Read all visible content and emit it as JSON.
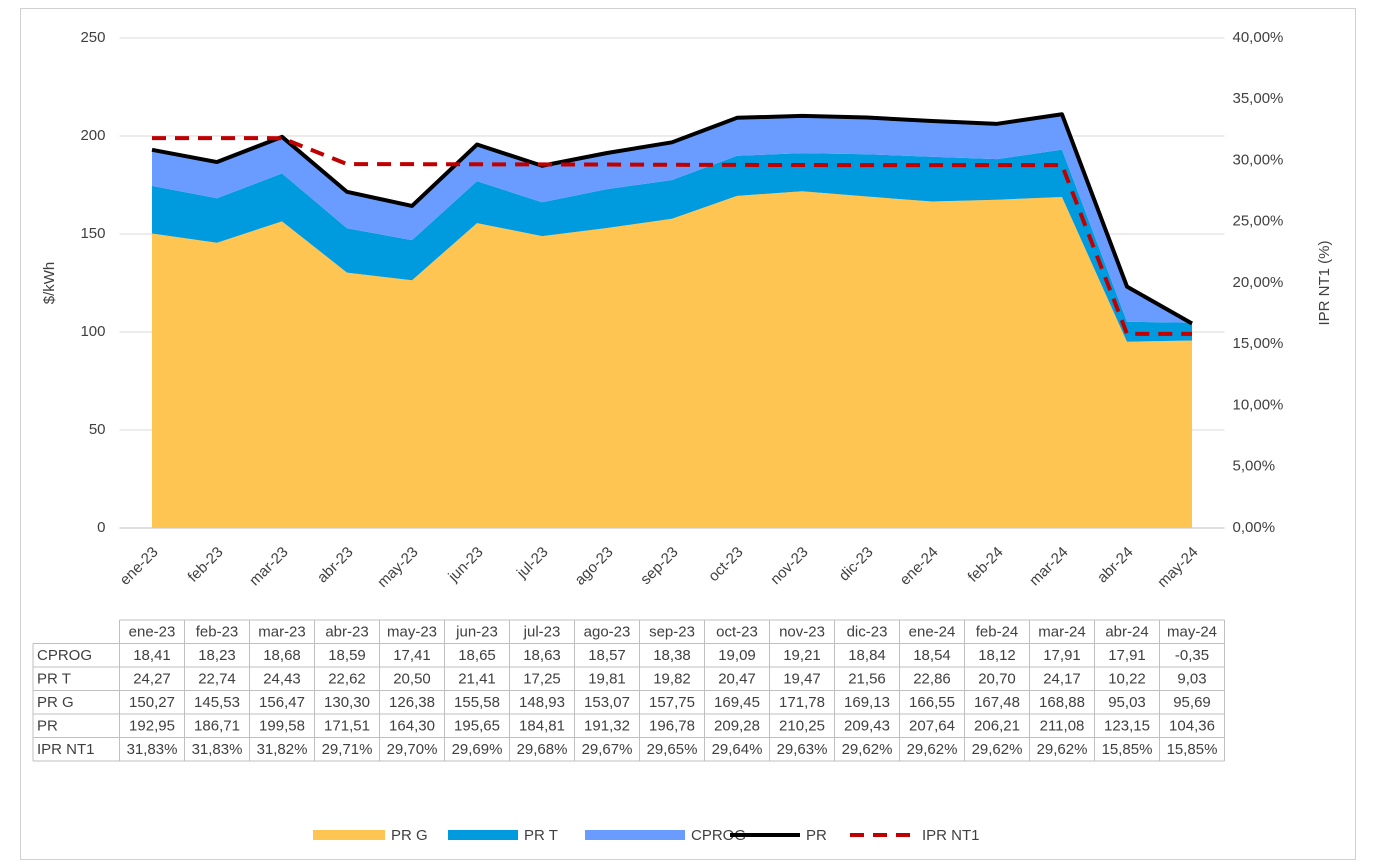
{
  "chart_data": {
    "type": "area",
    "categories": [
      "ene-23",
      "feb-23",
      "mar-23",
      "abr-23",
      "may-23",
      "jun-23",
      "jul-23",
      "ago-23",
      "sep-23",
      "oct-23",
      "nov-23",
      "dic-23",
      "ene-24",
      "feb-24",
      "mar-24",
      "abr-24",
      "may-24"
    ],
    "ylabel": "$/kWh",
    "y2label": "IPR NT1 (%)",
    "ylim": [
      0,
      250
    ],
    "yticks": [
      0,
      50,
      100,
      150,
      200,
      250
    ],
    "y2lim": [
      0,
      40
    ],
    "y2ticks": [
      {
        "value": 0,
        "label": "0,00%"
      },
      {
        "value": 5,
        "label": "5,00%"
      },
      {
        "value": 10,
        "label": "10,00%"
      },
      {
        "value": 15,
        "label": "15,00%"
      },
      {
        "value": 20,
        "label": "20,00%"
      },
      {
        "value": 25,
        "label": "25,00%"
      },
      {
        "value": 30,
        "label": "30,00%"
      },
      {
        "value": 35,
        "label": "35,00%"
      },
      {
        "value": 40,
        "label": "40,00%"
      }
    ],
    "grid": true,
    "legend": "bottom",
    "series": [
      {
        "name": "PR G",
        "type": "area",
        "color": "#fec552",
        "values": [
          150.27,
          145.53,
          156.47,
          130.3,
          126.38,
          155.58,
          148.93,
          153.07,
          157.75,
          169.45,
          171.78,
          169.13,
          166.55,
          167.48,
          168.88,
          95.03,
          95.69
        ],
        "value_labels": [
          "150,27",
          "145,53",
          "156,47",
          "130,30",
          "126,38",
          "155,58",
          "148,93",
          "153,07",
          "157,75",
          "169,45",
          "171,78",
          "169,13",
          "166,55",
          "167,48",
          "168,88",
          "95,03",
          "95,69"
        ]
      },
      {
        "name": "PR T",
        "type": "area",
        "color": "#009bde",
        "values": [
          24.27,
          22.74,
          24.43,
          22.62,
          20.5,
          21.41,
          17.25,
          19.81,
          19.82,
          20.47,
          19.47,
          21.56,
          22.86,
          20.7,
          24.17,
          10.22,
          9.03
        ],
        "value_labels": [
          "24,27",
          "22,74",
          "24,43",
          "22,62",
          "20,50",
          "21,41",
          "17,25",
          "19,81",
          "19,82",
          "20,47",
          "19,47",
          "21,56",
          "22,86",
          "20,70",
          "24,17",
          "10,22",
          "9,03"
        ]
      },
      {
        "name": "CPROG",
        "type": "area",
        "color": "#6a9cff",
        "values": [
          18.41,
          18.23,
          18.68,
          18.59,
          17.41,
          18.65,
          18.63,
          18.57,
          18.38,
          19.09,
          19.21,
          18.84,
          18.54,
          18.12,
          17.91,
          17.91,
          -0.35
        ],
        "value_labels": [
          "18,41",
          "18,23",
          "18,68",
          "18,59",
          "17,41",
          "18,65",
          "18,63",
          "18,57",
          "18,38",
          "19,09",
          "19,21",
          "18,84",
          "18,54",
          "18,12",
          "17,91",
          "17,91",
          "-0,35"
        ]
      },
      {
        "name": "PR",
        "type": "line",
        "color": "#000000",
        "values": [
          192.95,
          186.71,
          199.58,
          171.51,
          164.3,
          195.65,
          184.81,
          191.32,
          196.78,
          209.28,
          210.25,
          209.43,
          207.64,
          206.21,
          211.08,
          123.15,
          104.36
        ],
        "value_labels": [
          "192,95",
          "186,71",
          "199,58",
          "171,51",
          "164,30",
          "195,65",
          "184,81",
          "191,32",
          "196,78",
          "209,28",
          "210,25",
          "209,43",
          "207,64",
          "206,21",
          "211,08",
          "123,15",
          "104,36"
        ]
      },
      {
        "name": "IPR NT1",
        "type": "line",
        "dashed": true,
        "axis": "y2",
        "color": "#c00000",
        "values": [
          31.83,
          31.83,
          31.82,
          29.71,
          29.7,
          29.69,
          29.68,
          29.67,
          29.65,
          29.64,
          29.63,
          29.62,
          29.62,
          29.62,
          29.62,
          15.85,
          15.85
        ],
        "value_labels": [
          "31,83%",
          "31,83%",
          "31,82%",
          "29,71%",
          "29,70%",
          "29,69%",
          "29,68%",
          "29,67%",
          "29,65%",
          "29,64%",
          "29,63%",
          "29,62%",
          "29,62%",
          "29,62%",
          "29,62%",
          "15,85%",
          "15,85%"
        ]
      }
    ]
  }
}
